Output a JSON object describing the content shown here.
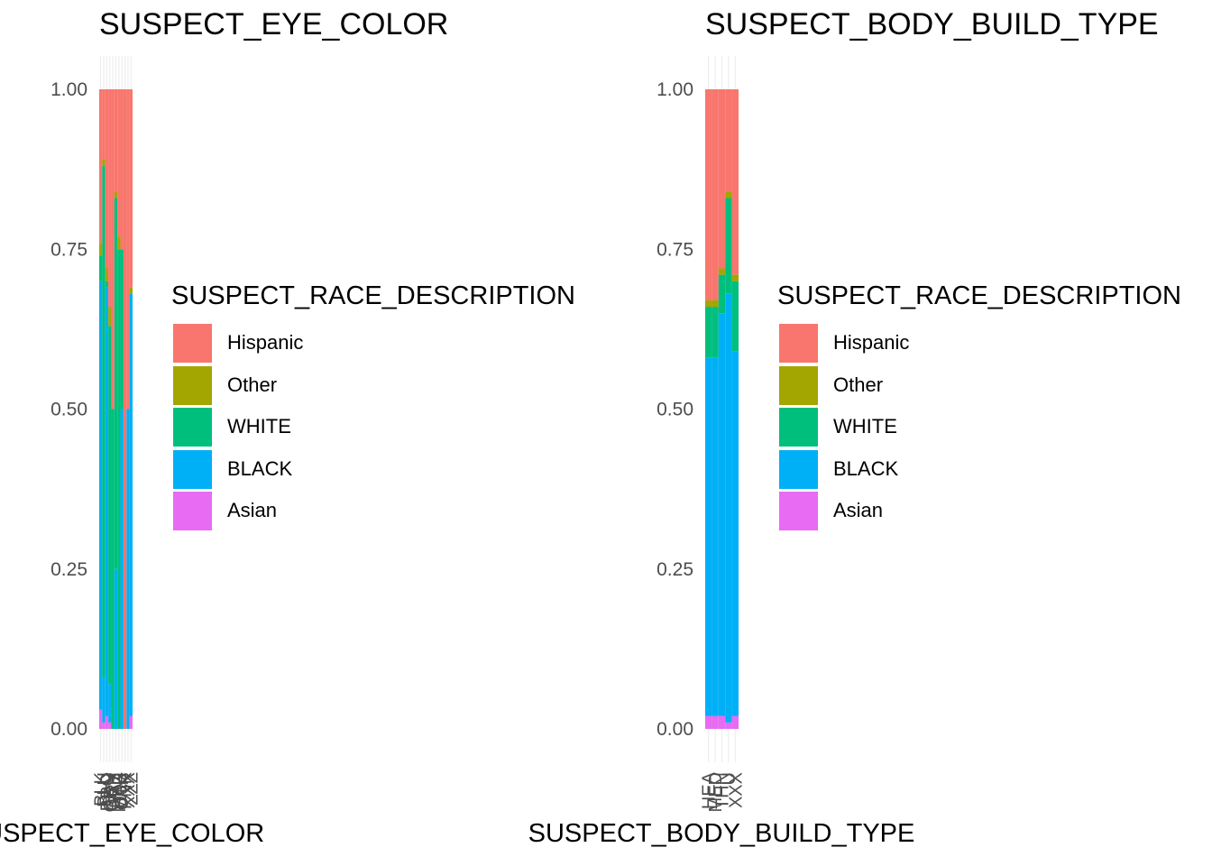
{
  "chart_data": [
    {
      "type": "bar",
      "stacked": true,
      "position": "fill",
      "title": "SUSPECT_EYE_COLOR",
      "xlabel": "SUSPECT_EYE_COLOR",
      "ylabel": "",
      "ylim": [
        0,
        1
      ],
      "yticks": [
        "0.00",
        "0.25",
        "0.50",
        "0.75",
        "1.00"
      ],
      "categories": [
        "BLK",
        "BLU",
        "BRO",
        "GRN",
        "GRY",
        "HAZ",
        "MAR",
        "OTH",
        "PNK",
        "XXX",
        "ZZZ"
      ],
      "legend_title": "SUSPECT_RACE_DESCRIPTION",
      "legend_position": "right",
      "series": [
        {
          "name": "Asian",
          "color": "#E76BF3",
          "values": [
            0.03,
            0.01,
            0.02,
            0.01,
            0.0,
            0.0,
            0.0,
            0.0,
            0.0,
            0.0,
            0.02
          ]
        },
        {
          "name": "BLACK",
          "color": "#00B0F6",
          "values": [
            0.67,
            0.07,
            0.67,
            0.06,
            0.0,
            0.25,
            0.0,
            0.5,
            0.0,
            0.5,
            0.66
          ]
        },
        {
          "name": "WHITE",
          "color": "#00BF7D",
          "values": [
            0.04,
            0.8,
            0.01,
            0.56,
            0.5,
            0.58,
            0.75,
            0.25,
            0.0,
            0.0,
            0.0
          ]
        },
        {
          "name": "Other",
          "color": "#A3A500",
          "values": [
            0.02,
            0.01,
            0.02,
            0.03,
            0.0,
            0.01,
            0.02,
            0.0,
            0.0,
            0.0,
            0.01
          ]
        },
        {
          "name": "Hispanic",
          "color": "#F8766D",
          "values": [
            0.24,
            0.11,
            0.28,
            0.34,
            0.5,
            0.16,
            0.23,
            0.25,
            1.0,
            0.5,
            0.31
          ]
        }
      ]
    },
    {
      "type": "bar",
      "stacked": true,
      "position": "fill",
      "title": "SUSPECT_BODY_BUILD_TYPE",
      "xlabel": "SUSPECT_BODY_BUILD_TYPE",
      "ylabel": "",
      "ylim": [
        0,
        1
      ],
      "yticks": [
        "0.00",
        "0.25",
        "0.50",
        "0.75",
        "1.00"
      ],
      "categories": [
        "HEA",
        "MED",
        "THN",
        "U",
        "XXX"
      ],
      "legend_title": "SUSPECT_RACE_DESCRIPTION",
      "legend_position": "right",
      "series": [
        {
          "name": "Asian",
          "color": "#E76BF3",
          "values": [
            0.02,
            0.02,
            0.02,
            0.01,
            0.02
          ]
        },
        {
          "name": "BLACK",
          "color": "#00B0F6",
          "values": [
            0.56,
            0.56,
            0.63,
            0.67,
            0.57
          ]
        },
        {
          "name": "WHITE",
          "color": "#00BF7D",
          "values": [
            0.08,
            0.08,
            0.06,
            0.15,
            0.11
          ]
        },
        {
          "name": "Other",
          "color": "#A3A500",
          "values": [
            0.01,
            0.01,
            0.01,
            0.01,
            0.01
          ]
        },
        {
          "name": "Hispanic",
          "color": "#F8766D",
          "values": [
            0.33,
            0.33,
            0.28,
            0.16,
            0.29
          ]
        }
      ]
    }
  ]
}
